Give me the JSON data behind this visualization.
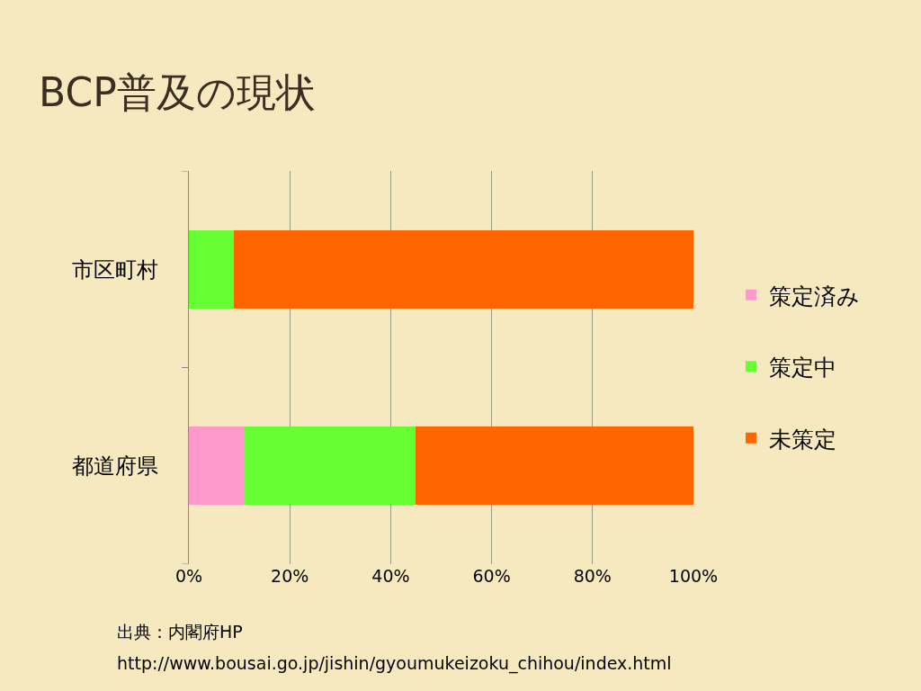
{
  "chart_data": {
    "type": "bar",
    "orientation": "horizontal",
    "stacked": true,
    "title": "BCP普及の現状",
    "categories": [
      "市区町村",
      "都道府県"
    ],
    "series": [
      {
        "name": "策定済み",
        "color": "#ff99cc",
        "values": [
          0,
          11
        ]
      },
      {
        "name": "策定中",
        "color": "#66ff33",
        "values": [
          9,
          34
        ]
      },
      {
        "name": "未策定",
        "color": "#ff6600",
        "values": [
          91,
          55
        ]
      }
    ],
    "xlim": [
      0,
      100
    ],
    "xticks": [
      {
        "value": 0,
        "label": "0%"
      },
      {
        "value": 20,
        "label": "20%"
      },
      {
        "value": 40,
        "label": "40%"
      },
      {
        "value": 60,
        "label": "60%"
      },
      {
        "value": 80,
        "label": "80%"
      },
      {
        "value": 100,
        "label": "100%"
      }
    ],
    "grid": "x",
    "legend": "right",
    "annotations": [
      "出典：内閣府HP",
      "http://www.bousai.go.jp/jishin/gyoumukeizoku_chihou/index.html"
    ]
  }
}
